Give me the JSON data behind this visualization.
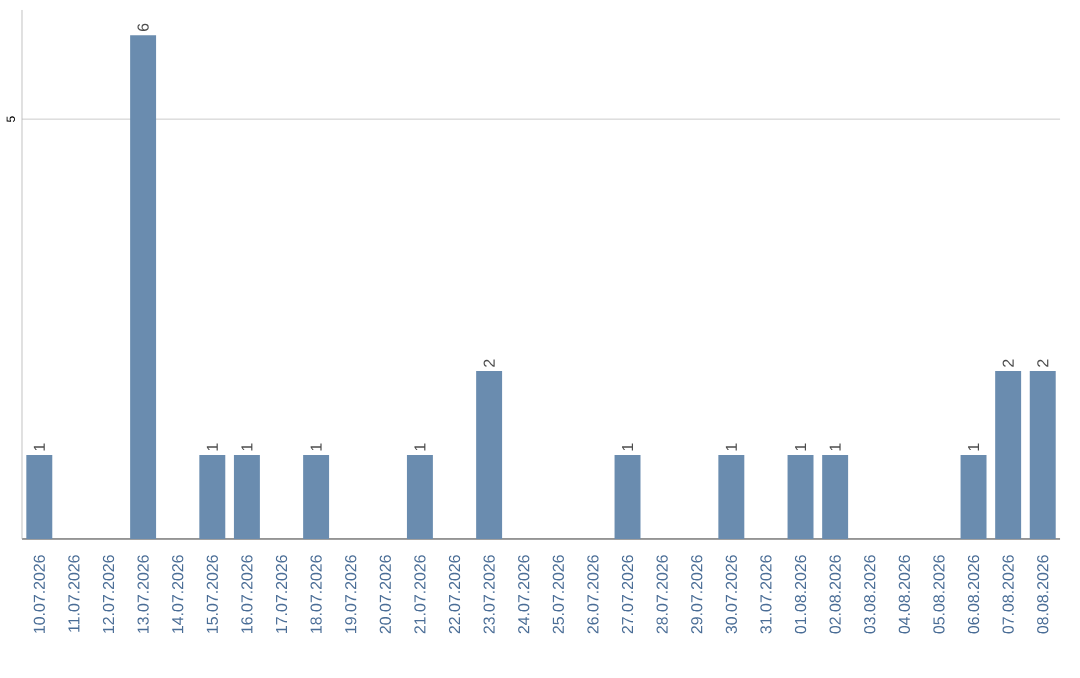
{
  "chart_data": {
    "type": "bar",
    "categories": [
      "10.07.2026",
      "11.07.2026",
      "12.07.2026",
      "13.07.2026",
      "14.07.2026",
      "15.07.2026",
      "16.07.2026",
      "17.07.2026",
      "18.07.2026",
      "19.07.2026",
      "20.07.2026",
      "21.07.2026",
      "22.07.2026",
      "23.07.2026",
      "24.07.2026",
      "25.07.2026",
      "26.07.2026",
      "27.07.2026",
      "28.07.2026",
      "29.07.2026",
      "30.07.2026",
      "31.07.2026",
      "01.08.2026",
      "02.08.2026",
      "03.08.2026",
      "04.08.2026",
      "05.08.2026",
      "06.08.2026",
      "07.08.2026",
      "08.08.2026"
    ],
    "values": [
      1,
      0,
      0,
      6,
      0,
      1,
      1,
      0,
      1,
      0,
      0,
      1,
      0,
      2,
      0,
      0,
      0,
      1,
      0,
      0,
      1,
      0,
      1,
      1,
      0,
      0,
      0,
      1,
      2,
      2
    ],
    "value_labels": [
      "1",
      null,
      null,
      "6",
      null,
      "1",
      "1",
      null,
      "1",
      null,
      null,
      "1",
      null,
      "2",
      null,
      null,
      null,
      "1",
      null,
      null,
      "1",
      null,
      "1",
      "1",
      null,
      null,
      null,
      "1",
      "2",
      "2"
    ],
    "color": "#6a8caf",
    "ylim": [
      0,
      6.3
    ],
    "yticks": [
      5
    ],
    "grid": "y"
  }
}
